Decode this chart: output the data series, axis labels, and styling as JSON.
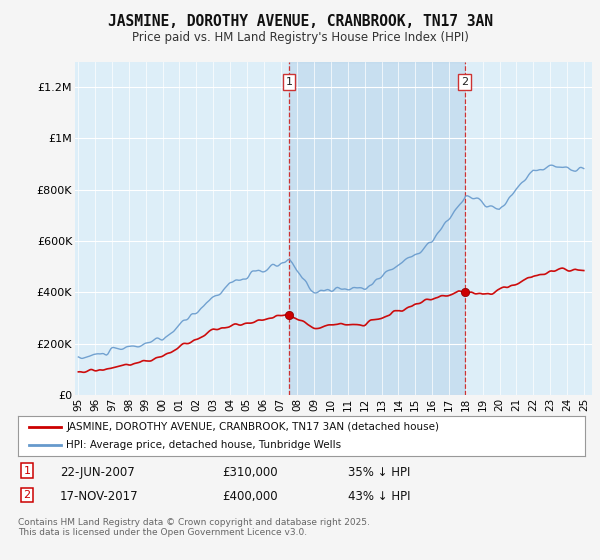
{
  "title": "JASMINE, DOROTHY AVENUE, CRANBROOK, TN17 3AN",
  "subtitle": "Price paid vs. HM Land Registry's House Price Index (HPI)",
  "ylim": [
    0,
    1300000
  ],
  "yticks": [
    0,
    200000,
    400000,
    600000,
    800000,
    1000000,
    1200000
  ],
  "ytick_labels": [
    "£0",
    "£200K",
    "£400K",
    "£600K",
    "£800K",
    "£1M",
    "£1.2M"
  ],
  "plot_bg_color": "#ddeef8",
  "shade_color": "#c8def0",
  "red_color": "#cc0000",
  "blue_color": "#6699cc",
  "legend_line1": "JASMINE, DOROTHY AVENUE, CRANBROOK, TN17 3AN (detached house)",
  "legend_line2": "HPI: Average price, detached house, Tunbridge Wells",
  "footer": "Contains HM Land Registry data © Crown copyright and database right 2025.\nThis data is licensed under the Open Government Licence v3.0.",
  "marker1_year": 2007.5,
  "marker2_year": 2017.92,
  "marker1_price": 310000,
  "marker2_price": 400000
}
